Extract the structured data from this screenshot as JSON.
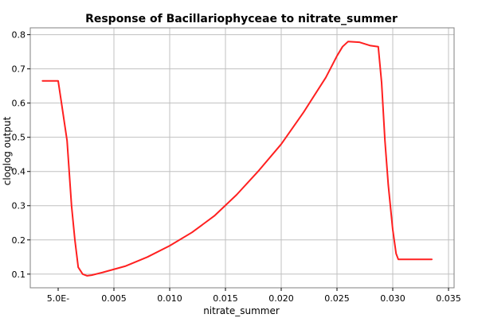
{
  "chart_data": {
    "type": "line",
    "title": "Response of Bacillariophyceae to nitrate_summer",
    "xlabel": "nitrate_summer",
    "ylabel": "cloglog output",
    "xlim": [
      -0.0025,
      0.0355
    ],
    "ylim": [
      0.06,
      0.82
    ],
    "grid": true,
    "x_ticks": [
      0.005,
      0.01,
      0.015,
      0.02,
      0.025,
      0.03,
      0.035
    ],
    "x_tick_labels": [
      "5.0E-",
      "0.005",
      "0.010",
      "0.015",
      "0.020",
      "0.025",
      "0.030",
      "0.035"
    ],
    "x_tick_values": [
      0.0,
      0.005,
      0.01,
      0.015,
      0.02,
      0.025,
      0.03,
      0.035
    ],
    "y_ticks": [
      0.1,
      0.2,
      0.3,
      0.4,
      0.5,
      0.6,
      0.7,
      0.8
    ],
    "y_tick_labels": [
      "0.1",
      "0.2",
      "0.3",
      "0.4",
      "0.5",
      "0.6",
      "0.7",
      "0.8"
    ],
    "series": [
      {
        "color": "#ff2020",
        "x": [
          -0.0014,
          -0.0005,
          0.0,
          0.0003,
          0.0008,
          0.0012,
          0.0015,
          0.0018,
          0.0022,
          0.0026,
          0.003,
          0.004,
          0.006,
          0.008,
          0.01,
          0.012,
          0.014,
          0.016,
          0.018,
          0.02,
          0.022,
          0.024,
          0.025,
          0.0255,
          0.026,
          0.027,
          0.028,
          0.0287,
          0.029,
          0.0293,
          0.0296,
          0.03,
          0.0303,
          0.0305,
          0.031,
          0.032,
          0.0335
        ],
        "y": [
          0.665,
          0.665,
          0.665,
          0.6,
          0.49,
          0.3,
          0.2,
          0.12,
          0.1,
          0.095,
          0.097,
          0.105,
          0.123,
          0.15,
          0.183,
          0.222,
          0.27,
          0.332,
          0.403,
          0.48,
          0.573,
          0.675,
          0.738,
          0.765,
          0.78,
          0.778,
          0.768,
          0.765,
          0.66,
          0.49,
          0.36,
          0.23,
          0.16,
          0.143,
          0.143,
          0.143,
          0.143
        ]
      }
    ]
  }
}
